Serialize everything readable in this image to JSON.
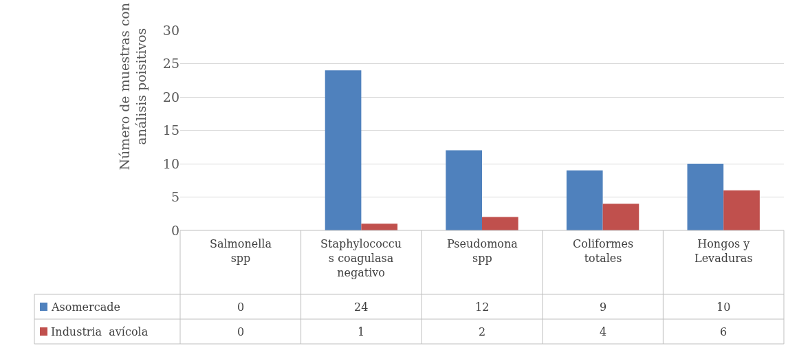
{
  "chart_data": {
    "type": "bar",
    "ylabel": "Número de muestras con análisis poisitivos",
    "categories": [
      "Salmonella spp",
      "Staphylococcus coagulasa negativo",
      "Pseudomona spp",
      "Coliformes totales",
      "Hongos y Levaduras"
    ],
    "series": [
      {
        "name": "Asomercade",
        "color": "#4f81bd",
        "values": [
          0,
          24,
          12,
          9,
          10
        ]
      },
      {
        "name": "Industria  avícola",
        "color": "#c0504d",
        "values": [
          0,
          1,
          2,
          4,
          6
        ]
      }
    ],
    "ylim": [
      0,
      30
    ],
    "yticks": [
      0,
      5,
      10,
      15,
      20,
      25,
      30
    ],
    "grid": "y",
    "data_labels": true,
    "legend": "bottom left"
  }
}
